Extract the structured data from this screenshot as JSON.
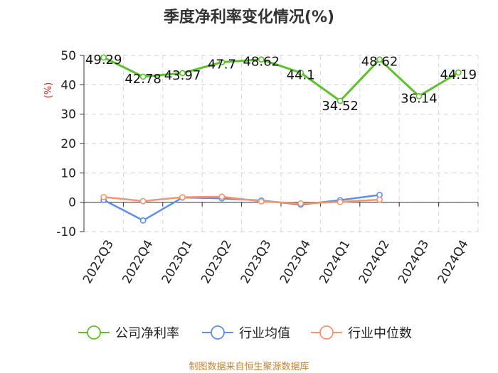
{
  "chart_data": {
    "type": "line",
    "title": "季度净利率变化情况(%)",
    "ylabel": "(%)",
    "ylim": [
      -10,
      50
    ],
    "yticks": [
      -10,
      0,
      10,
      20,
      30,
      40,
      50
    ],
    "grid": true,
    "legend_position": "bottom",
    "categories": [
      "2022Q3",
      "2022Q4",
      "2023Q1",
      "2023Q2",
      "2023Q3",
      "2023Q4",
      "2024Q1",
      "2024Q2",
      "2024Q3",
      "2024Q4"
    ],
    "series": [
      {
        "name": "公司净利率",
        "color": "#5cc12b",
        "values": [
          49.29,
          42.78,
          43.97,
          47.7,
          48.62,
          44.1,
          34.52,
          48.62,
          36.14,
          44.19
        ],
        "labels": [
          "49.29",
          "42.78",
          "43.97",
          "47.7",
          "48.62",
          "44.1",
          "34.52",
          "48.62",
          "36.14",
          "44.19"
        ]
      },
      {
        "name": "行业均值",
        "color": "#5b8ff0",
        "values": [
          0.8,
          -6.2,
          1.6,
          1.3,
          0.6,
          -0.8,
          0.7,
          2.5,
          null,
          null
        ]
      },
      {
        "name": "行业中位数",
        "color": "#f5956b",
        "values": [
          1.8,
          0.4,
          1.7,
          1.9,
          0.3,
          -0.4,
          0.1,
          0.9,
          null,
          null
        ]
      }
    ]
  },
  "source": "制图数据来自恒生聚源数据库"
}
